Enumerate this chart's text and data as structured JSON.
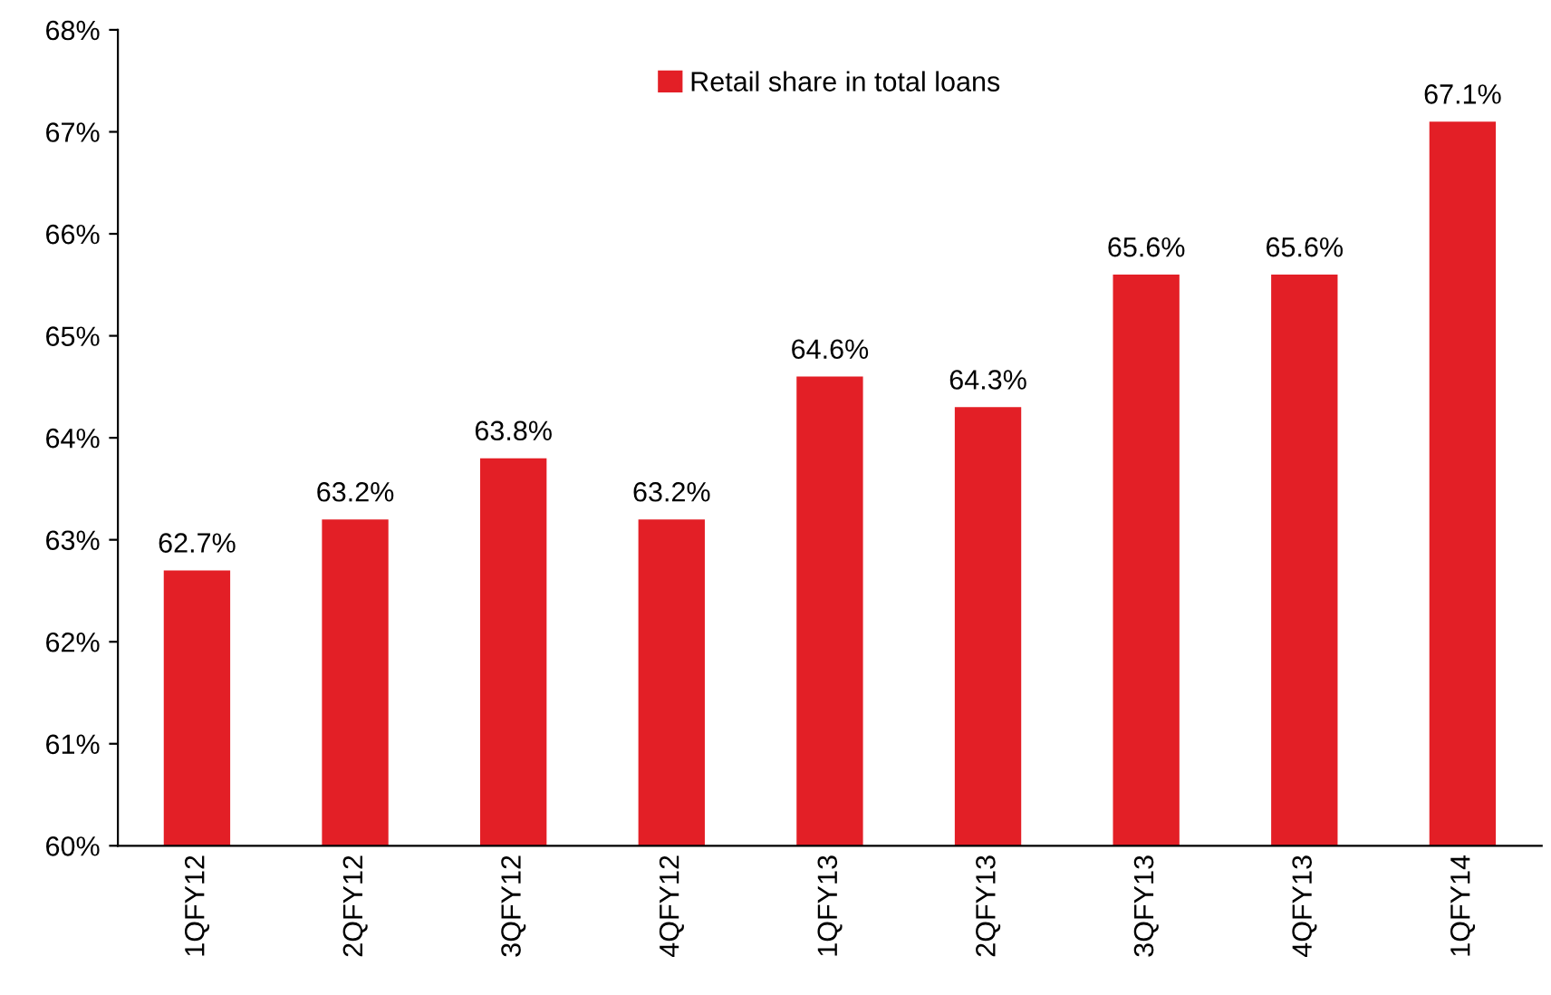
{
  "chart_data": {
    "type": "bar",
    "categories": [
      "1QFY12",
      "2QFY12",
      "3QFY12",
      "4QFY12",
      "1QFY13",
      "2QFY13",
      "3QFY13",
      "4QFY13",
      "1QFY14"
    ],
    "series": [
      {
        "name": "Retail share in total loans",
        "color": "#e31f26",
        "values": [
          62.7,
          63.2,
          63.8,
          63.2,
          64.6,
          64.3,
          65.6,
          65.6,
          67.1
        ]
      }
    ],
    "value_labels": [
      "62.7%",
      "63.2%",
      "63.8%",
      "63.2%",
      "64.6%",
      "64.3%",
      "65.6%",
      "65.6%",
      "67.1%"
    ],
    "ylim": [
      60,
      68
    ],
    "yticks": [
      {
        "value": 60,
        "label": "60%"
      },
      {
        "value": 61,
        "label": "61%"
      },
      {
        "value": 62,
        "label": "62%"
      },
      {
        "value": 63,
        "label": "63%"
      },
      {
        "value": 64,
        "label": "64%"
      },
      {
        "value": 65,
        "label": "65%"
      },
      {
        "value": 66,
        "label": "66%"
      },
      {
        "value": 67,
        "label": "67%"
      },
      {
        "value": 68,
        "label": "68%"
      }
    ],
    "grid": false,
    "legend": "top"
  }
}
